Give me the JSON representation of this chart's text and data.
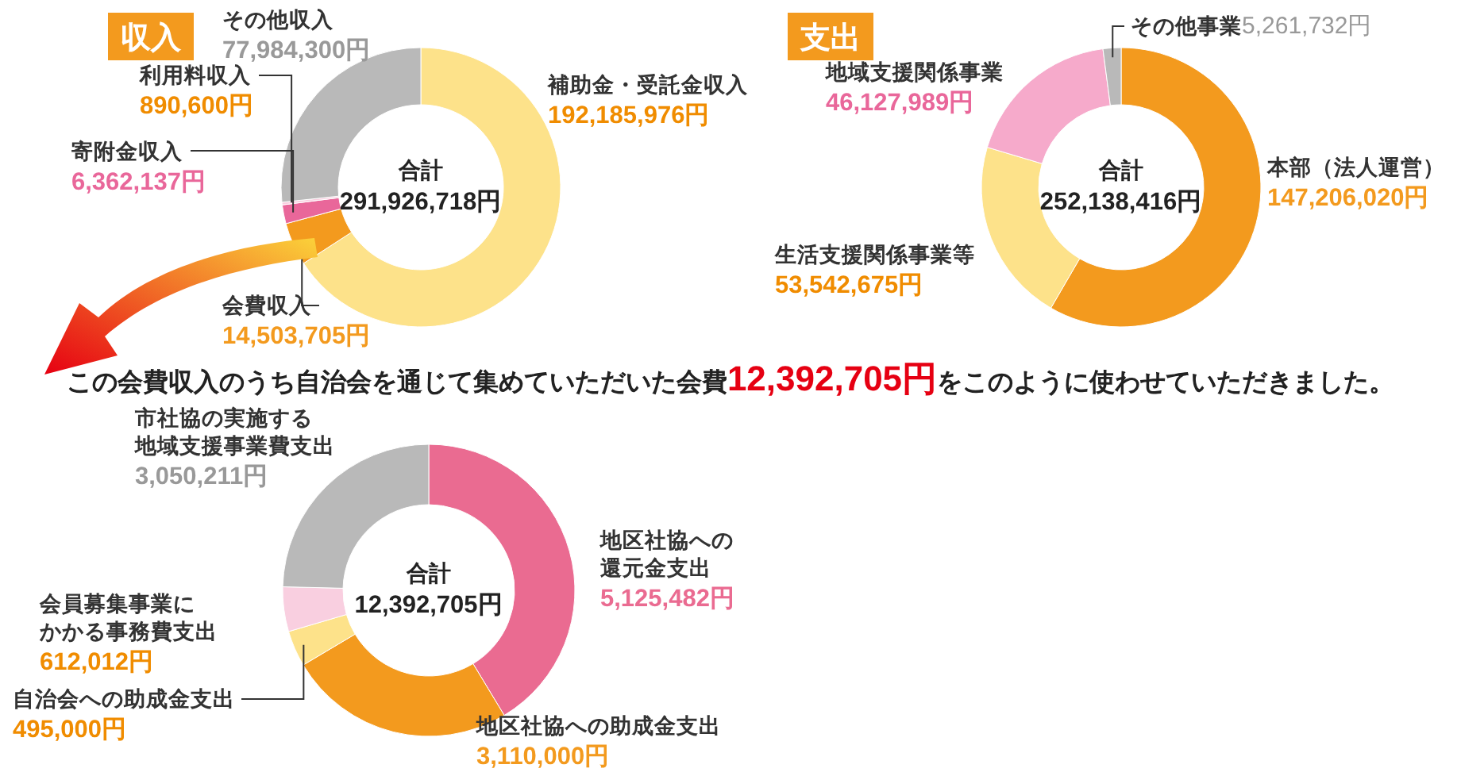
{
  "chart_data": [
    {
      "type": "donut",
      "title": "収入",
      "annotations": [
        "合計",
        "291,926,718円"
      ],
      "categories": [
        "補助金・受託金収入",
        "会費収入",
        "寄附金収入",
        "利用料収入",
        "その他収入"
      ],
      "values": [
        192185976,
        14503705,
        6362137,
        890600,
        77984300
      ],
      "value_labels": [
        "192,185,976円",
        "14,503,705円",
        "6,362,137円",
        "890,600円",
        "77,984,300円"
      ],
      "colors": [
        "#fde28a",
        "#f39a1e",
        "#e9679a",
        "#f9cfe0",
        "#b9b9b9"
      ]
    },
    {
      "type": "donut",
      "title": "支出",
      "annotations": [
        "合計",
        "252,138,416円"
      ],
      "categories": [
        "本部（法人運営）",
        "生活支援関係事業等",
        "地域支援関係事業",
        "その他事業"
      ],
      "values": [
        147206020,
        53542675,
        46127989,
        5261732
      ],
      "value_labels": [
        "147,206,020円",
        "53,542,675円",
        "46,127,989円",
        "5,261,732円"
      ],
      "colors": [
        "#f39a1e",
        "#fde28a",
        "#f6aacb",
        "#b9b9b9"
      ]
    },
    {
      "type": "donut",
      "title": "この会費収入のうち自治会を通じて集めていただいた会費12,392,705円をこのように使わせていただきました。",
      "annotations": [
        "合計",
        "12,392,705円"
      ],
      "categories": [
        "地区社協への還元金支出",
        "地区社協への助成金支出",
        "自治会への助成金支出",
        "会員募集事業にかかる事務費支出",
        "市社協の実施する地域支援事業費支出"
      ],
      "values": [
        5125482,
        3110000,
        495000,
        612012,
        3050211
      ],
      "value_labels": [
        "5,125,482円",
        "3,110,000円",
        "495,000円",
        "612,012円",
        "3,050,211円"
      ],
      "colors": [
        "#ea6b91",
        "#f39a1e",
        "#fde28a",
        "#f9cfe0",
        "#b9b9b9"
      ]
    }
  ]
}
